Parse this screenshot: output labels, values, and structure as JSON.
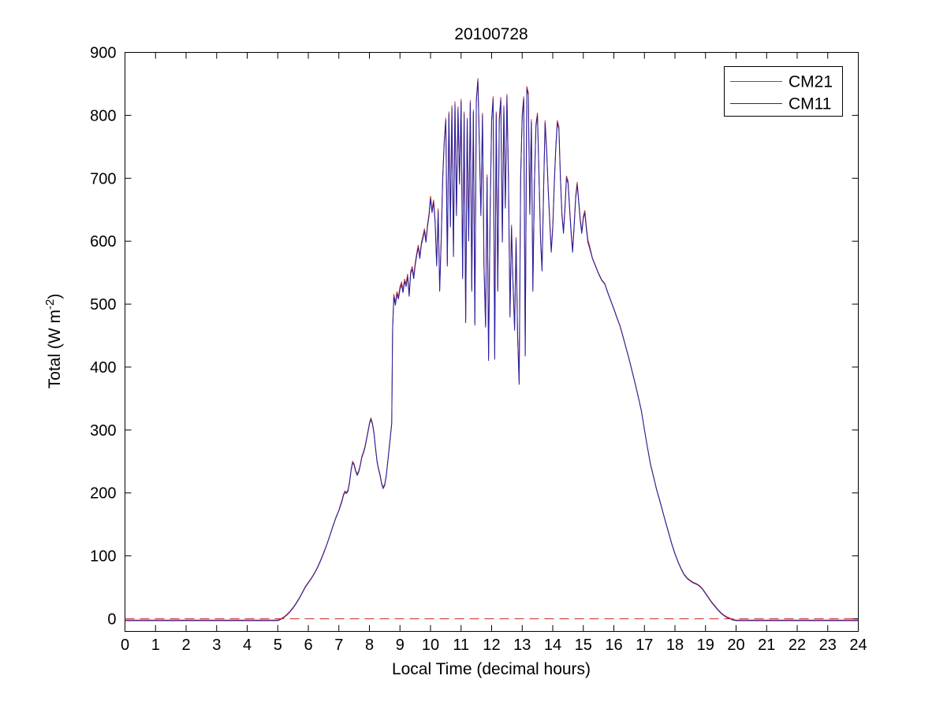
{
  "chart_data": {
    "type": "line",
    "title": "20100728",
    "xlabel": "Local Time (decimal hours)",
    "ylabel": "Total (W m-2)",
    "ylabel_parts": [
      "Total (W m",
      "-2",
      ")"
    ],
    "xlim": [
      0,
      24
    ],
    "ylim": [
      -20,
      900
    ],
    "x_ticks": [
      0,
      1,
      2,
      3,
      4,
      5,
      6,
      7,
      8,
      9,
      10,
      11,
      12,
      13,
      14,
      15,
      16,
      17,
      18,
      19,
      20,
      21,
      22,
      23,
      24
    ],
    "y_ticks": [
      0,
      100,
      200,
      300,
      400,
      500,
      600,
      700,
      800,
      900
    ],
    "grid": false,
    "legend": {
      "position": "top-right",
      "entries": [
        {
          "label": "CM21",
          "color": "#cc2929"
        },
        {
          "label": "CM11",
          "color": "#2121a3"
        }
      ]
    },
    "zero_line": {
      "y": 0,
      "color": "#cc2929",
      "style": "dashed"
    },
    "x": [
      0,
      1,
      2,
      3,
      4,
      4.5,
      4.8,
      5,
      5.1,
      5.2,
      5.3,
      5.4,
      5.5,
      5.6,
      5.7,
      5.8,
      5.9,
      6,
      6.1,
      6.2,
      6.3,
      6.4,
      6.5,
      6.6,
      6.7,
      6.8,
      6.9,
      7,
      7.05,
      7.1,
      7.15,
      7.2,
      7.25,
      7.3,
      7.35,
      7.4,
      7.45,
      7.5,
      7.55,
      7.6,
      7.65,
      7.7,
      7.75,
      7.8,
      7.85,
      7.9,
      7.95,
      8,
      8.05,
      8.1,
      8.15,
      8.2,
      8.25,
      8.3,
      8.35,
      8.4,
      8.45,
      8.5,
      8.55,
      8.6,
      8.65,
      8.7,
      8.73,
      8.76,
      8.8,
      8.85,
      8.9,
      8.95,
      9,
      9.05,
      9.1,
      9.15,
      9.2,
      9.25,
      9.3,
      9.35,
      9.4,
      9.45,
      9.5,
      9.55,
      9.6,
      9.65,
      9.7,
      9.75,
      9.8,
      9.85,
      9.9,
      9.95,
      10,
      10.05,
      10.1,
      10.15,
      10.2,
      10.25,
      10.3,
      10.35,
      10.4,
      10.45,
      10.5,
      10.55,
      10.6,
      10.65,
      10.7,
      10.75,
      10.8,
      10.85,
      10.9,
      10.95,
      11,
      11.05,
      11.1,
      11.15,
      11.2,
      11.25,
      11.3,
      11.35,
      11.4,
      11.45,
      11.5,
      11.55,
      11.6,
      11.65,
      11.7,
      11.75,
      11.8,
      11.85,
      11.9,
      11.95,
      12,
      12.05,
      12.1,
      12.15,
      12.2,
      12.25,
      12.3,
      12.35,
      12.4,
      12.45,
      12.5,
      12.55,
      12.6,
      12.65,
      12.7,
      12.75,
      12.8,
      12.85,
      12.9,
      12.95,
      13,
      13.05,
      13.1,
      13.15,
      13.2,
      13.25,
      13.3,
      13.35,
      13.4,
      13.45,
      13.5,
      13.55,
      13.6,
      13.65,
      13.7,
      13.75,
      13.8,
      13.85,
      13.9,
      13.95,
      14,
      14.05,
      14.1,
      14.15,
      14.2,
      14.25,
      14.3,
      14.35,
      14.4,
      14.45,
      14.5,
      14.55,
      14.6,
      14.65,
      14.7,
      14.75,
      14.8,
      14.85,
      14.9,
      14.95,
      15,
      15.05,
      15.1,
      15.15,
      15.2,
      15.3,
      15.4,
      15.5,
      15.6,
      15.7,
      15.8,
      15.9,
      16,
      16.1,
      16.2,
      16.3,
      16.4,
      16.5,
      16.6,
      16.7,
      16.8,
      16.9,
      17,
      17.1,
      17.2,
      17.3,
      17.4,
      17.5,
      17.6,
      17.7,
      17.8,
      17.9,
      18,
      18.1,
      18.2,
      18.3,
      18.4,
      18.5,
      18.6,
      18.7,
      18.8,
      18.9,
      19,
      19.1,
      19.2,
      19.3,
      19.4,
      19.5,
      19.6,
      19.7,
      19.8,
      19.9,
      20,
      20.5,
      21,
      22,
      23,
      24
    ],
    "series": [
      {
        "name": "CM21",
        "color": "#cc2929",
        "values": [
          -2,
          -2,
          -2,
          -2,
          -2,
          -2,
          -2,
          -2,
          0,
          3,
          7,
          12,
          18,
          25,
          33,
          42,
          51,
          58,
          65,
          73,
          82,
          93,
          105,
          118,
          132,
          147,
          161,
          173,
          181,
          188,
          198,
          203,
          201,
          205,
          218,
          238,
          250,
          246,
          236,
          230,
          235,
          245,
          258,
          265,
          273,
          285,
          298,
          311,
          319,
          311,
          296,
          273,
          251,
          239,
          229,
          216,
          209,
          214,
          228,
          251,
          274,
          297,
          312,
          462,
          516,
          502,
          520,
          512,
          528,
          535,
          522,
          540,
          532,
          548,
          516,
          552,
          560,
          544,
          566,
          582,
          594,
          576,
          598,
          608,
          620,
          602,
          626,
          644,
          672,
          649,
          666,
          634,
          564,
          652,
          524,
          608,
          704,
          760,
          796,
          564,
          806,
          626,
          816,
          579,
          822,
          644,
          814,
          694,
          826,
          544,
          806,
          474,
          796,
          604,
          824,
          524,
          809,
          470,
          826,
          859,
          752,
          644,
          804,
          564,
          467,
          706,
          414,
          649,
          794,
          830,
          416,
          806,
          524,
          796,
          829,
          602,
          816,
          656,
          834,
          706,
          483,
          626,
          536,
          462,
          606,
          454,
          376,
          704,
          802,
          830,
          421,
          846,
          836,
          646,
          794,
          524,
          696,
          786,
          804,
          706,
          606,
          556,
          684,
          792,
          746,
          686,
          636,
          586,
          624,
          692,
          752,
          792,
          782,
          704,
          646,
          616,
          654,
          704,
          696,
          656,
          616,
          586,
          626,
          672,
          694,
          666,
          636,
          616,
          640,
          649,
          624,
          602,
          594,
          573,
          561,
          549,
          539,
          533,
          519,
          506,
          493,
          479,
          466,
          449,
          431,
          413,
          393,
          374,
          353,
          331,
          301,
          273,
          246,
          226,
          206,
          189,
          171,
          153,
          136,
          119,
          104,
          91,
          80,
          71,
          65,
          61,
          58,
          56,
          53,
          48,
          41,
          34,
          27,
          21,
          15,
          10,
          6,
          3,
          1,
          -1,
          -2,
          -2,
          -2,
          -2,
          -2,
          -2
        ]
      },
      {
        "name": "CM11",
        "color": "#2121a3",
        "values": [
          -3,
          -3,
          -3,
          -3,
          -3,
          -3,
          -3,
          -3,
          -1,
          2,
          6,
          11,
          17,
          24,
          32,
          41,
          50,
          57,
          64,
          72,
          81,
          92,
          104,
          117,
          131,
          146,
          160,
          172,
          179,
          186,
          196,
          201,
          199,
          203,
          216,
          236,
          248,
          244,
          234,
          228,
          233,
          243,
          256,
          263,
          271,
          283,
          296,
          309,
          317,
          309,
          294,
          271,
          249,
          237,
          227,
          214,
          207,
          212,
          226,
          249,
          272,
          295,
          310,
          458,
          512,
          498,
          516,
          508,
          524,
          531,
          518,
          536,
          528,
          544,
          512,
          548,
          556,
          540,
          562,
          578,
          590,
          572,
          594,
          604,
          616,
          598,
          622,
          640,
          668,
          645,
          662,
          630,
          560,
          648,
          520,
          604,
          700,
          756,
          792,
          560,
          802,
          622,
          812,
          575,
          818,
          640,
          810,
          690,
          822,
          540,
          802,
          470,
          792,
          600,
          820,
          520,
          805,
          466,
          822,
          855,
          748,
          640,
          800,
          560,
          463,
          702,
          410,
          645,
          790,
          826,
          412,
          802,
          520,
          792,
          825,
          598,
          812,
          652,
          830,
          702,
          479,
          622,
          532,
          458,
          602,
          450,
          372,
          700,
          798,
          826,
          417,
          842,
          832,
          642,
          790,
          520,
          692,
          782,
          800,
          702,
          602,
          552,
          680,
          788,
          742,
          682,
          632,
          582,
          620,
          688,
          748,
          788,
          778,
          700,
          642,
          612,
          650,
          700,
          692,
          652,
          612,
          582,
          622,
          668,
          690,
          662,
          632,
          612,
          636,
          645,
          620,
          598,
          590,
          572,
          560,
          548,
          538,
          532,
          518,
          505,
          492,
          478,
          465,
          448,
          430,
          412,
          392,
          373,
          352,
          330,
          300,
          272,
          245,
          225,
          205,
          188,
          170,
          152,
          135,
          118,
          103,
          90,
          79,
          70,
          64,
          60,
          57,
          55,
          52,
          47,
          40,
          33,
          26,
          20,
          14,
          9,
          5,
          2,
          0,
          -2,
          -3,
          -3,
          -3,
          -3,
          -3,
          -3
        ]
      }
    ]
  }
}
